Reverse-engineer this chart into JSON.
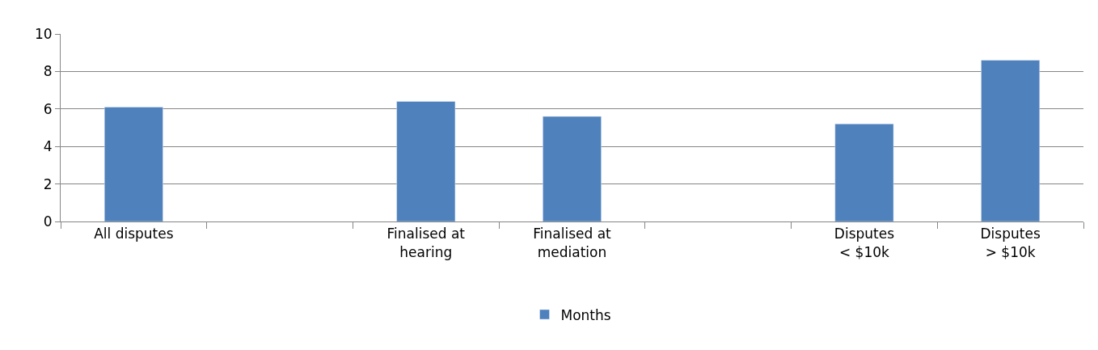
{
  "chart_data": {
    "type": "bar",
    "categories": [
      "All disputes",
      null,
      "Finalised at hearing",
      "Finalised at mediation",
      null,
      "Disputes < $10k",
      "Disputes > $10k"
    ],
    "series": [
      {
        "name": "Months",
        "color": "#4f81bd",
        "values": [
          6.1,
          null,
          6.4,
          5.6,
          null,
          5.2,
          8.6
        ]
      }
    ],
    "ylim": [
      0,
      10
    ],
    "yticks": [
      0,
      2,
      4,
      6,
      8,
      10
    ],
    "grid": "y",
    "legend": "bottom"
  }
}
